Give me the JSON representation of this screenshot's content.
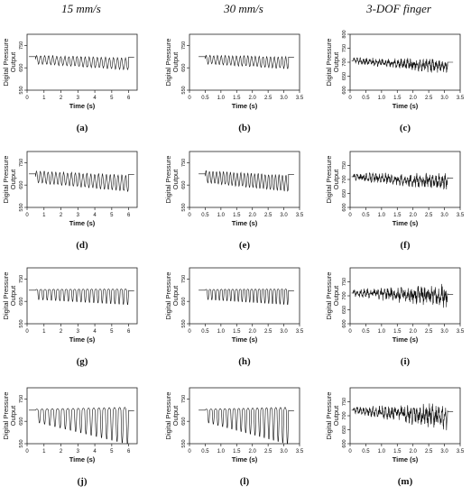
{
  "columns": [
    "15 mm/s",
    "30 mm/s",
    "3-DOF finger"
  ],
  "chart_data": [
    {
      "type": "line",
      "caption": "(a)",
      "xlabel": "Time (s)",
      "ylabel": "Digital Pressure Output",
      "xlim": [
        0,
        6.5
      ],
      "ylim": [
        550,
        800
      ],
      "xticks": [
        0,
        1,
        2,
        3,
        4,
        5,
        6
      ],
      "yticks": [
        550,
        650,
        750
      ],
      "style": "osc",
      "start": 0.5,
      "end": 6.0,
      "baseline": 700,
      "cycles": 23,
      "amp_start": 18,
      "amp_end": 26,
      "trend": -20
    },
    {
      "type": "line",
      "caption": "(b)",
      "xlabel": "Time (s)",
      "ylabel": "Digital Pressure Output",
      "xlim": [
        0,
        3.5
      ],
      "ylim": [
        550,
        800
      ],
      "xticks": [
        0,
        0.5,
        1.0,
        1.5,
        2.0,
        2.5,
        3.0,
        3.5
      ],
      "yticks": [
        550,
        650,
        750
      ],
      "style": "osc",
      "start": 0.5,
      "end": 3.15,
      "baseline": 700,
      "cycles": 22,
      "amp_start": 18,
      "amp_end": 26,
      "trend": -15
    },
    {
      "type": "line",
      "caption": "(c)",
      "xlabel": "Time (s)",
      "ylabel": "Digital Pressure Output",
      "xlim": [
        0,
        3.5
      ],
      "ylim": [
        600,
        800
      ],
      "xticks": [
        0,
        0.5,
        1.0,
        1.5,
        2.0,
        2.5,
        3.0,
        3.5
      ],
      "yticks": [
        600,
        650,
        700,
        750,
        800
      ],
      "style": "noisy",
      "start": 0.1,
      "end": 3.1,
      "baseline": 705,
      "cycles": 30,
      "amp_start": 10,
      "amp_end": 25,
      "trend": -20
    },
    {
      "type": "line",
      "caption": "(d)",
      "xlabel": "Time (s)",
      "ylabel": "Digital Pressure Output",
      "xlim": [
        0,
        6.5
      ],
      "ylim": [
        550,
        800
      ],
      "xticks": [
        0,
        1,
        2,
        3,
        4,
        5,
        6
      ],
      "yticks": [
        550,
        650,
        750
      ],
      "style": "osc",
      "start": 0.5,
      "end": 6.0,
      "baseline": 700,
      "cycles": 24,
      "amp_start": 25,
      "amp_end": 35,
      "trend": -30
    },
    {
      "type": "line",
      "caption": "(e)",
      "xlabel": "Time (s)",
      "ylabel": "Digital Pressure Output",
      "xlim": [
        0,
        3.5
      ],
      "ylim": [
        550,
        800
      ],
      "xticks": [
        0,
        0.5,
        1.0,
        1.5,
        2.0,
        2.5,
        3.0,
        3.5
      ],
      "yticks": [
        550,
        650,
        750
      ],
      "style": "osc",
      "start": 0.5,
      "end": 3.15,
      "baseline": 700,
      "cycles": 24,
      "amp_start": 25,
      "amp_end": 35,
      "trend": -30
    },
    {
      "type": "line",
      "caption": "(f)",
      "xlabel": "Time (s)",
      "ylabel": "Digital Pressure Output",
      "xlim": [
        0,
        3.5
      ],
      "ylim": [
        600,
        800
      ],
      "xticks": [
        0,
        0.5,
        1.0,
        1.5,
        2.0,
        2.5,
        3.0,
        3.5
      ],
      "yticks": [
        600,
        650,
        700,
        750
      ],
      "style": "noisy",
      "start": 0.1,
      "end": 3.1,
      "baseline": 710,
      "cycles": 30,
      "amp_start": 12,
      "amp_end": 28,
      "trend": -20
    },
    {
      "type": "line",
      "caption": "(g)",
      "xlabel": "Time (s)",
      "ylabel": "Digital Pressure Output",
      "xlim": [
        0,
        6.5
      ],
      "ylim": [
        550,
        800
      ],
      "xticks": [
        0,
        1,
        2,
        3,
        4,
        5,
        6
      ],
      "yticks": [
        550,
        650,
        750
      ],
      "style": "dip",
      "start": 0.5,
      "end": 6.0,
      "baseline": 700,
      "cycles": 22,
      "amp_start": 35,
      "amp_end": 55,
      "trend": 0
    },
    {
      "type": "line",
      "caption": "(h)",
      "xlabel": "Time (s)",
      "ylabel": "Digital Pressure Output",
      "xlim": [
        0,
        3.5
      ],
      "ylim": [
        550,
        800
      ],
      "xticks": [
        0,
        0.5,
        1.0,
        1.5,
        2.0,
        2.5,
        3.0,
        3.5
      ],
      "yticks": [
        550,
        650,
        750
      ],
      "style": "dip",
      "start": 0.5,
      "end": 3.15,
      "baseline": 700,
      "cycles": 22,
      "amp_start": 35,
      "amp_end": 55,
      "trend": 0
    },
    {
      "type": "line",
      "caption": "(i)",
      "xlabel": "Time (s)",
      "ylabel": "Digital Pressure Output",
      "xlim": [
        0,
        3.5
      ],
      "ylim": [
        600,
        800
      ],
      "xticks": [
        0,
        0.5,
        1.0,
        1.5,
        2.0,
        2.5,
        3.0,
        3.5
      ],
      "yticks": [
        600,
        650,
        700,
        750
      ],
      "style": "noisy",
      "start": 0.1,
      "end": 3.1,
      "baseline": 710,
      "cycles": 28,
      "amp_start": 12,
      "amp_end": 40,
      "trend": -10
    },
    {
      "type": "line",
      "caption": "(j)",
      "xlabel": "Time (s)",
      "ylabel": "Digital Pressure Output",
      "xlim": [
        0,
        6.5
      ],
      "ylim": [
        550,
        800
      ],
      "xticks": [
        0,
        1,
        2,
        3,
        4,
        5,
        6
      ],
      "yticks": [
        550,
        650,
        750
      ],
      "style": "dip",
      "start": 0.5,
      "end": 6.0,
      "baseline": 700,
      "cycles": 18,
      "amp_start": 45,
      "amp_end": 130,
      "trend": 0
    },
    {
      "type": "line",
      "caption": "(l)",
      "xlabel": "Time (s)",
      "ylabel": "Digital Pressure Output",
      "xlim": [
        0,
        3.5
      ],
      "ylim": [
        550,
        800
      ],
      "xticks": [
        0,
        0.5,
        1.0,
        1.5,
        2.0,
        2.5,
        3.0,
        3.5
      ],
      "yticks": [
        550,
        650,
        750
      ],
      "style": "dip",
      "start": 0.5,
      "end": 3.15,
      "baseline": 700,
      "cycles": 18,
      "amp_start": 45,
      "amp_end": 130,
      "trend": 0
    },
    {
      "type": "line",
      "caption": "(m)",
      "xlabel": "Time (s)",
      "ylabel": "Digital Pressure Output",
      "xlim": [
        0,
        3.5
      ],
      "ylim": [
        600,
        800
      ],
      "xticks": [
        0,
        0.5,
        1.0,
        1.5,
        2.0,
        2.5,
        3.0,
        3.5
      ],
      "yticks": [
        600,
        650,
        700,
        750
      ],
      "style": "noisy",
      "start": 0.1,
      "end": 3.1,
      "baseline": 720,
      "cycles": 30,
      "amp_start": 10,
      "amp_end": 45,
      "trend": -25
    }
  ]
}
